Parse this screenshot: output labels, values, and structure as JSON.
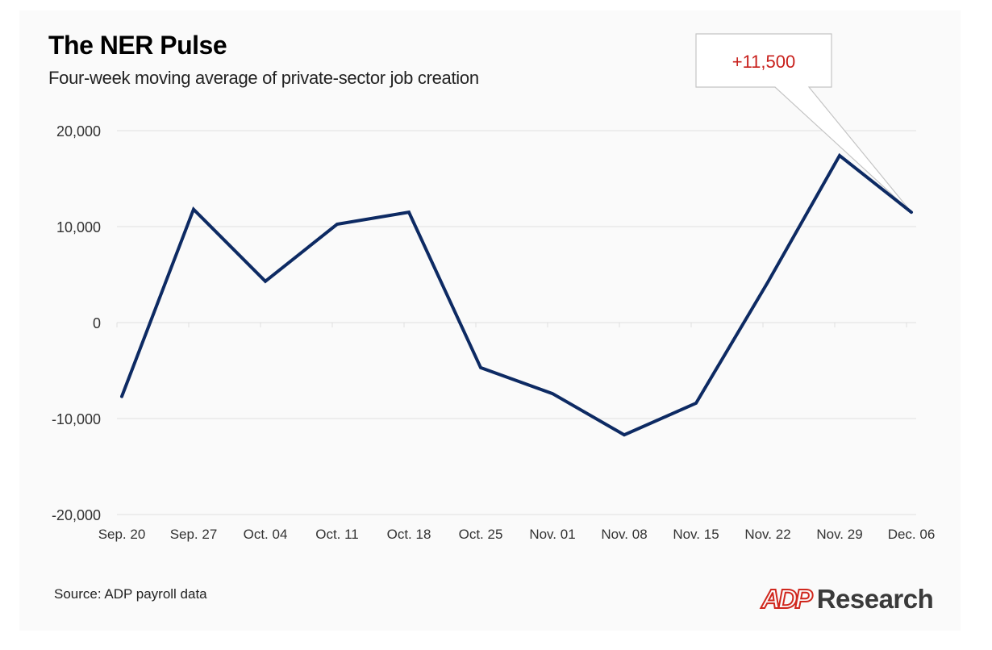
{
  "header": {
    "title": "The NER Pulse",
    "subtitle": "Four-week moving average of private-sector job creation"
  },
  "footer": {
    "source": "Source: ADP payroll data",
    "logo_brand": "ADP",
    "logo_text": "Research"
  },
  "colors": {
    "line": "#0d2a63",
    "grid": "#e0e0e0",
    "callout_text": "#c8201c",
    "callout_border": "#c4c4c4",
    "logo_red": "#d0271d",
    "background": "#fafafa"
  },
  "callout": {
    "label": "+11,500",
    "target_category": "Dec. 06"
  },
  "chart_data": {
    "type": "line",
    "title": "The NER Pulse",
    "subtitle": "Four-week moving average of private-sector job creation",
    "xlabel": "",
    "ylabel": "",
    "categories": [
      "Sep. 20",
      "Sep. 27",
      "Oct. 04",
      "Oct. 11",
      "Oct. 18",
      "Oct. 25",
      "Nov. 01",
      "Nov. 08",
      "Nov. 15",
      "Nov. 22",
      "Nov. 29",
      "Dec. 06"
    ],
    "series": [
      {
        "name": "Four-week moving average",
        "values": [
          -7700,
          11800,
          4300,
          10250,
          11500,
          -4700,
          -7400,
          -11700,
          -8400,
          4200,
          17400,
          11500
        ]
      }
    ],
    "yticks": [
      20000,
      10000,
      0,
      -10000,
      -20000
    ],
    "ytick_labels": [
      "20,000",
      "10,000",
      "0",
      "-10,000",
      "-20,000"
    ],
    "ylim": [
      -20000,
      20000
    ],
    "grid": true,
    "legend": "none",
    "annotations": [
      {
        "category": "Dec. 06",
        "text": "+11,500"
      }
    ],
    "source": "Source: ADP payroll data"
  }
}
